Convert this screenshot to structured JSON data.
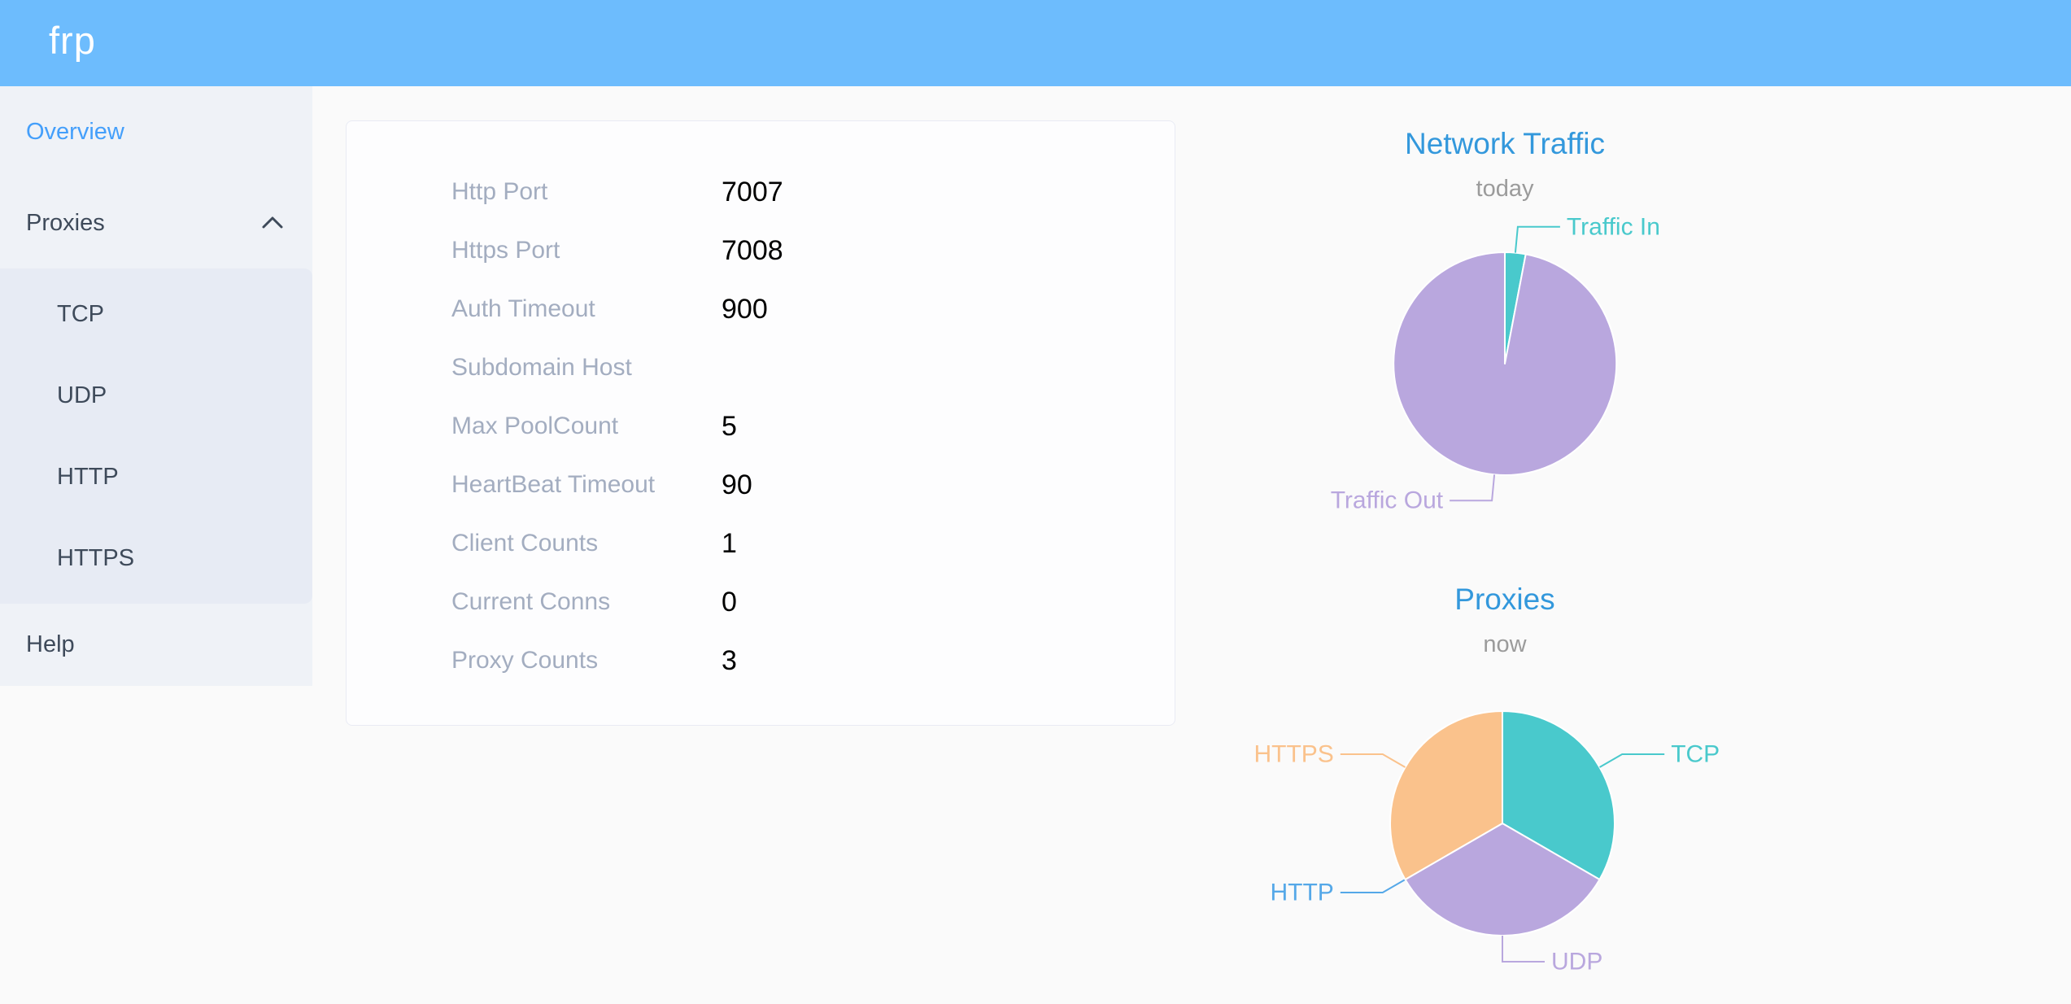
{
  "header": {
    "logo": "frp"
  },
  "sidebar": {
    "items": [
      {
        "label": "Overview",
        "active": true
      },
      {
        "label": "Proxies",
        "expanded": true,
        "children": [
          "TCP",
          "UDP",
          "HTTP",
          "HTTPS"
        ]
      },
      {
        "label": "Help",
        "active": false
      }
    ]
  },
  "server_info": {
    "rows": [
      {
        "label": "Http Port",
        "value": "7007"
      },
      {
        "label": "Https Port",
        "value": "7008"
      },
      {
        "label": "Auth Timeout",
        "value": "900"
      },
      {
        "label": "Subdomain Host",
        "value": ""
      },
      {
        "label": "Max PoolCount",
        "value": "5"
      },
      {
        "label": "HeartBeat Timeout",
        "value": "90"
      },
      {
        "label": "Client Counts",
        "value": "1"
      },
      {
        "label": "Current Conns",
        "value": "0"
      },
      {
        "label": "Proxy Counts",
        "value": "3"
      }
    ]
  },
  "chart_data": [
    {
      "type": "pie",
      "title": "Network Traffic",
      "subtitle": "today",
      "legend": "none",
      "label_position": "outside",
      "series": [
        {
          "name": "Traffic In",
          "value": 3,
          "color": "#49c9cc"
        },
        {
          "name": "Traffic Out",
          "value": 97,
          "color": "#b9a7de"
        }
      ]
    },
    {
      "type": "pie",
      "title": "Proxies",
      "subtitle": "now",
      "legend": "none",
      "label_position": "outside",
      "series": [
        {
          "name": "TCP",
          "value": 1,
          "color": "#49c9cc"
        },
        {
          "name": "UDP",
          "value": 1,
          "color": "#b9a7de"
        },
        {
          "name": "HTTP",
          "value": 0,
          "color": "#55a8e8"
        },
        {
          "name": "HTTPS",
          "value": 1,
          "color": "#fac28c"
        }
      ]
    }
  ],
  "colors": {
    "header_bg": "#6dbcfd",
    "page_bg": "#fafafa",
    "sidebar_bg": "#eff2f7",
    "submenu_bg": "#e7ebf4",
    "active_menu_item": "#449ffb",
    "menu_text": "#3e4a5a",
    "card_label_gray": "#a3adc0",
    "chart_title_blue": "#3398dc",
    "subtitle_gray": "#9b9b9b"
  }
}
